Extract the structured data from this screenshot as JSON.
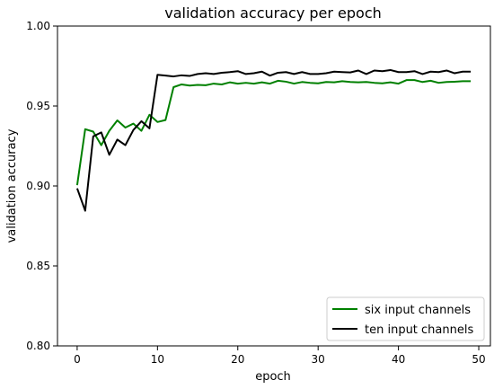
{
  "chart_data": {
    "type": "line",
    "title": "validation accuracy per epoch",
    "xlabel": "epoch",
    "ylabel": "validation accuracy",
    "xlim": [
      -2.45,
      51.45
    ],
    "ylim": [
      0.8,
      1.0
    ],
    "xticks": [
      0,
      10,
      20,
      30,
      40,
      50
    ],
    "yticks": [
      0.8,
      0.85,
      0.9,
      0.95,
      1.0
    ],
    "xtick_labels": [
      "0",
      "10",
      "20",
      "30",
      "40",
      "50"
    ],
    "ytick_labels": [
      "0.80",
      "0.85",
      "0.90",
      "0.95",
      "1.00"
    ],
    "grid": false,
    "legend_position": "lower-right",
    "x": [
      0,
      1,
      2,
      3,
      4,
      5,
      6,
      7,
      8,
      9,
      10,
      11,
      12,
      13,
      14,
      15,
      16,
      17,
      18,
      19,
      20,
      21,
      22,
      23,
      24,
      25,
      26,
      27,
      28,
      29,
      30,
      31,
      32,
      33,
      34,
      35,
      36,
      37,
      38,
      39,
      40,
      41,
      42,
      43,
      44,
      45,
      46,
      47,
      48,
      49
    ],
    "series": [
      {
        "name": "six input channels",
        "color": "#008000",
        "values": [
          0.9005,
          0.9355,
          0.934,
          0.9255,
          0.9345,
          0.941,
          0.9365,
          0.939,
          0.9345,
          0.9445,
          0.94,
          0.9412,
          0.9618,
          0.9635,
          0.9628,
          0.9632,
          0.963,
          0.964,
          0.9635,
          0.9648,
          0.964,
          0.9645,
          0.964,
          0.9648,
          0.964,
          0.9658,
          0.9652,
          0.964,
          0.965,
          0.9645,
          0.9642,
          0.965,
          0.9648,
          0.9655,
          0.965,
          0.9648,
          0.965,
          0.9645,
          0.9642,
          0.9648,
          0.964,
          0.9662,
          0.9662,
          0.965,
          0.9658,
          0.9645,
          0.965,
          0.9652,
          0.9655,
          0.9655
        ]
      },
      {
        "name": "ten input channels",
        "color": "#000000",
        "values": [
          0.8985,
          0.8845,
          0.931,
          0.9335,
          0.9195,
          0.929,
          0.9255,
          0.935,
          0.9405,
          0.936,
          0.9695,
          0.969,
          0.9685,
          0.9692,
          0.9688,
          0.97,
          0.9705,
          0.97,
          0.9708,
          0.9712,
          0.9718,
          0.97,
          0.9705,
          0.9715,
          0.969,
          0.9708,
          0.9712,
          0.97,
          0.9712,
          0.97,
          0.97,
          0.9705,
          0.9715,
          0.9712,
          0.971,
          0.9722,
          0.97,
          0.9722,
          0.9718,
          0.9725,
          0.9712,
          0.9712,
          0.9718,
          0.97,
          0.9715,
          0.9712,
          0.9722,
          0.9705,
          0.9715,
          0.9715
        ]
      }
    ]
  }
}
